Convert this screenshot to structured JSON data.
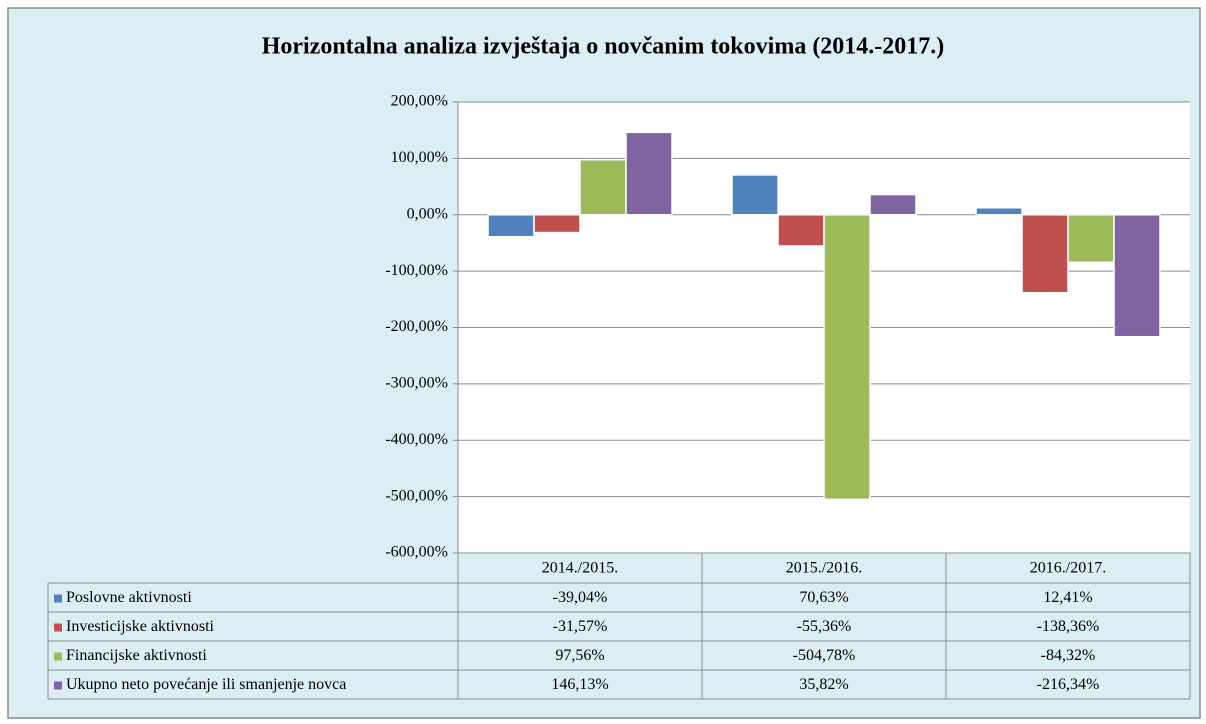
{
  "chart_data": {
    "type": "bar",
    "title": "Horizontalna analiza izvještaja o novčanim tokovima (2014.-2017.)",
    "categories": [
      "2014./2015.",
      "2015./2016.",
      "2016./2017."
    ],
    "series": [
      {
        "name": "Poslovne aktivnosti",
        "color": "#4f81bd",
        "values": [
          -39.04,
          70.63,
          12.41
        ],
        "value_labels": [
          "-39,04%",
          "70,63%",
          "12,41%"
        ]
      },
      {
        "name": "Investicijske aktivnosti",
        "color": "#c0504d",
        "values": [
          -31.57,
          -55.36,
          -138.36
        ],
        "value_labels": [
          "-31,57%",
          "-55,36%",
          "-138,36%"
        ]
      },
      {
        "name": "Financijske aktivnosti",
        "color": "#9bbb59",
        "values": [
          97.56,
          -504.78,
          -84.32
        ],
        "value_labels": [
          "97,56%",
          "-504,78%",
          "-84,32%"
        ]
      },
      {
        "name": "Ukupno neto povećanje ili smanjenje novca",
        "color": "#8064a2",
        "values": [
          146.13,
          35.82,
          -216.34
        ],
        "value_labels": [
          "146,13%",
          "35,82%",
          "-216,34%"
        ]
      }
    ],
    "ylim": [
      -600,
      200
    ],
    "yticks": [
      {
        "value": 200,
        "label": "200,00%"
      },
      {
        "value": 100,
        "label": "100,00%"
      },
      {
        "value": 0,
        "label": "0,00%"
      },
      {
        "value": -100,
        "label": "-100,00%"
      },
      {
        "value": -200,
        "label": "-200,00%"
      },
      {
        "value": -300,
        "label": "-300,00%"
      },
      {
        "value": -400,
        "label": "-400,00%"
      },
      {
        "value": -500,
        "label": "-500,00%"
      },
      {
        "value": -600,
        "label": "-600,00%"
      }
    ],
    "grid": true
  }
}
